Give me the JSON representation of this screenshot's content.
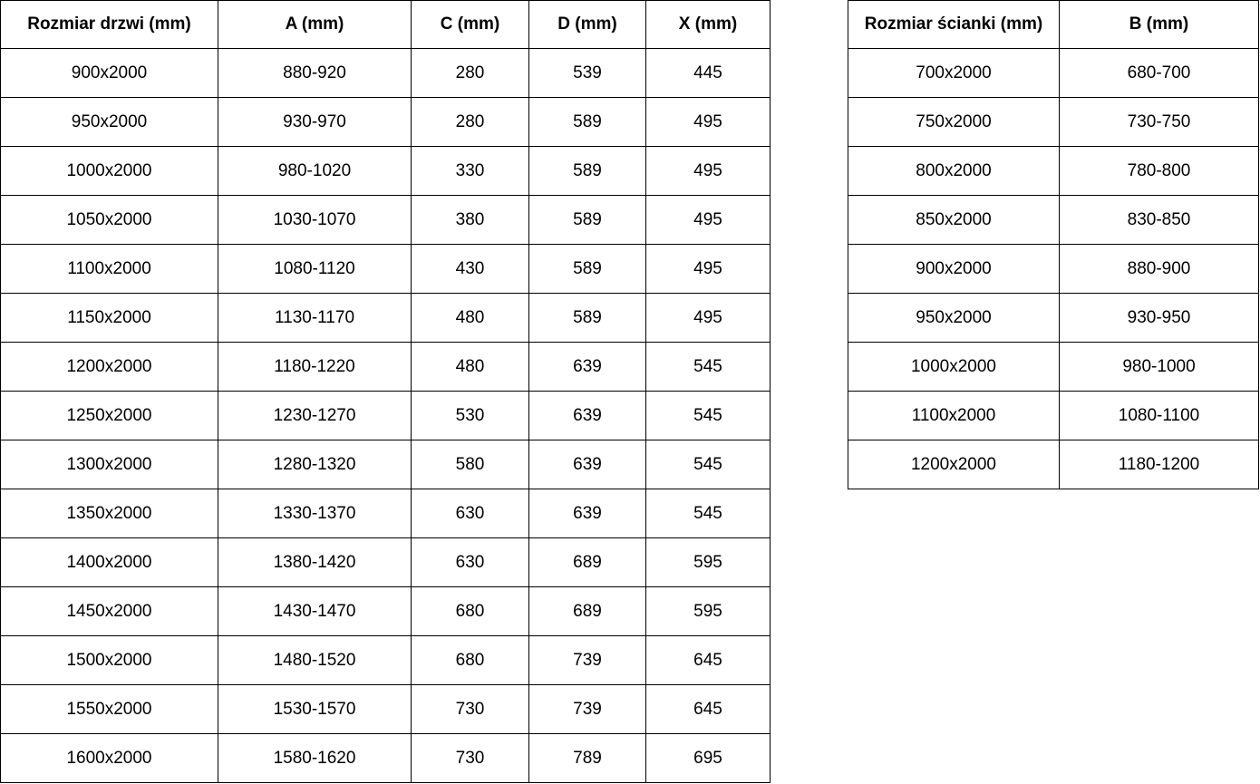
{
  "page": {
    "background_color": "#ffffff",
    "border_color": "#000000",
    "text_color": "#000000"
  },
  "chart_data": [
    {
      "type": "table",
      "name": "door-sizes",
      "headers": [
        "Rozmiar drzwi (mm)",
        "A (mm)",
        "C (mm)",
        "D (mm)",
        "X (mm)"
      ],
      "rows": [
        [
          "900x2000",
          "880-920",
          "280",
          "539",
          "445"
        ],
        [
          "950x2000",
          "930-970",
          "280",
          "589",
          "495"
        ],
        [
          "1000x2000",
          "980-1020",
          "330",
          "589",
          "495"
        ],
        [
          "1050x2000",
          "1030-1070",
          "380",
          "589",
          "495"
        ],
        [
          "1100x2000",
          "1080-1120",
          "430",
          "589",
          "495"
        ],
        [
          "1150x2000",
          "1130-1170",
          "480",
          "589",
          "495"
        ],
        [
          "1200x2000",
          "1180-1220",
          "480",
          "639",
          "545"
        ],
        [
          "1250x2000",
          "1230-1270",
          "530",
          "639",
          "545"
        ],
        [
          "1300x2000",
          "1280-1320",
          "580",
          "639",
          "545"
        ],
        [
          "1350x2000",
          "1330-1370",
          "630",
          "639",
          "545"
        ],
        [
          "1400x2000",
          "1380-1420",
          "630",
          "689",
          "595"
        ],
        [
          "1450x2000",
          "1430-1470",
          "680",
          "689",
          "595"
        ],
        [
          "1500x2000",
          "1480-1520",
          "680",
          "739",
          "645"
        ],
        [
          "1550x2000",
          "1530-1570",
          "730",
          "739",
          "645"
        ],
        [
          "1600x2000",
          "1580-1620",
          "730",
          "789",
          "695"
        ]
      ]
    },
    {
      "type": "table",
      "name": "wall-sizes",
      "headers": [
        "Rozmiar ścianki (mm)",
        "B (mm)"
      ],
      "rows": [
        [
          "700x2000",
          "680-700"
        ],
        [
          "750x2000",
          "730-750"
        ],
        [
          "800x2000",
          "780-800"
        ],
        [
          "850x2000",
          "830-850"
        ],
        [
          "900x2000",
          "880-900"
        ],
        [
          "950x2000",
          "930-950"
        ],
        [
          "1000x2000",
          "980-1000"
        ],
        [
          "1100x2000",
          "1080-1100"
        ],
        [
          "1200x2000",
          "1180-1200"
        ]
      ]
    }
  ]
}
